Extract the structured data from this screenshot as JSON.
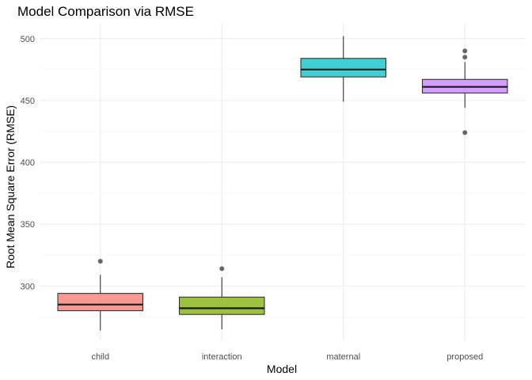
{
  "chart_data": {
    "type": "boxplot",
    "title": "Model Comparison via RMSE",
    "xlabel": "Model",
    "ylabel": "Root Mean Square Error (RMSE)",
    "ylim": [
      256,
      512
    ],
    "yticks": [
      300,
      350,
      400,
      450,
      500
    ],
    "grid": true,
    "legend": "none",
    "categories": [
      "child",
      "interaction",
      "maternal",
      "proposed"
    ],
    "series": [
      {
        "name": "child",
        "color": "#F8766D",
        "min": 264,
        "q1": 280,
        "median": 285,
        "q3": 294,
        "max": 309,
        "outliers": [
          320
        ]
      },
      {
        "name": "interaction",
        "color": "#7CAE00",
        "min": 265,
        "q1": 277,
        "median": 282,
        "q3": 291,
        "max": 307,
        "outliers": [
          314
        ]
      },
      {
        "name": "maternal",
        "color": "#00BFC4",
        "min": 449,
        "q1": 469,
        "median": 475,
        "q3": 484,
        "max": 502,
        "outliers": []
      },
      {
        "name": "proposed",
        "color": "#C77CFF",
        "min": 444,
        "q1": 456,
        "median": 461,
        "q3": 467,
        "max": 481,
        "outliers": [
          485,
          490,
          424
        ]
      }
    ]
  }
}
